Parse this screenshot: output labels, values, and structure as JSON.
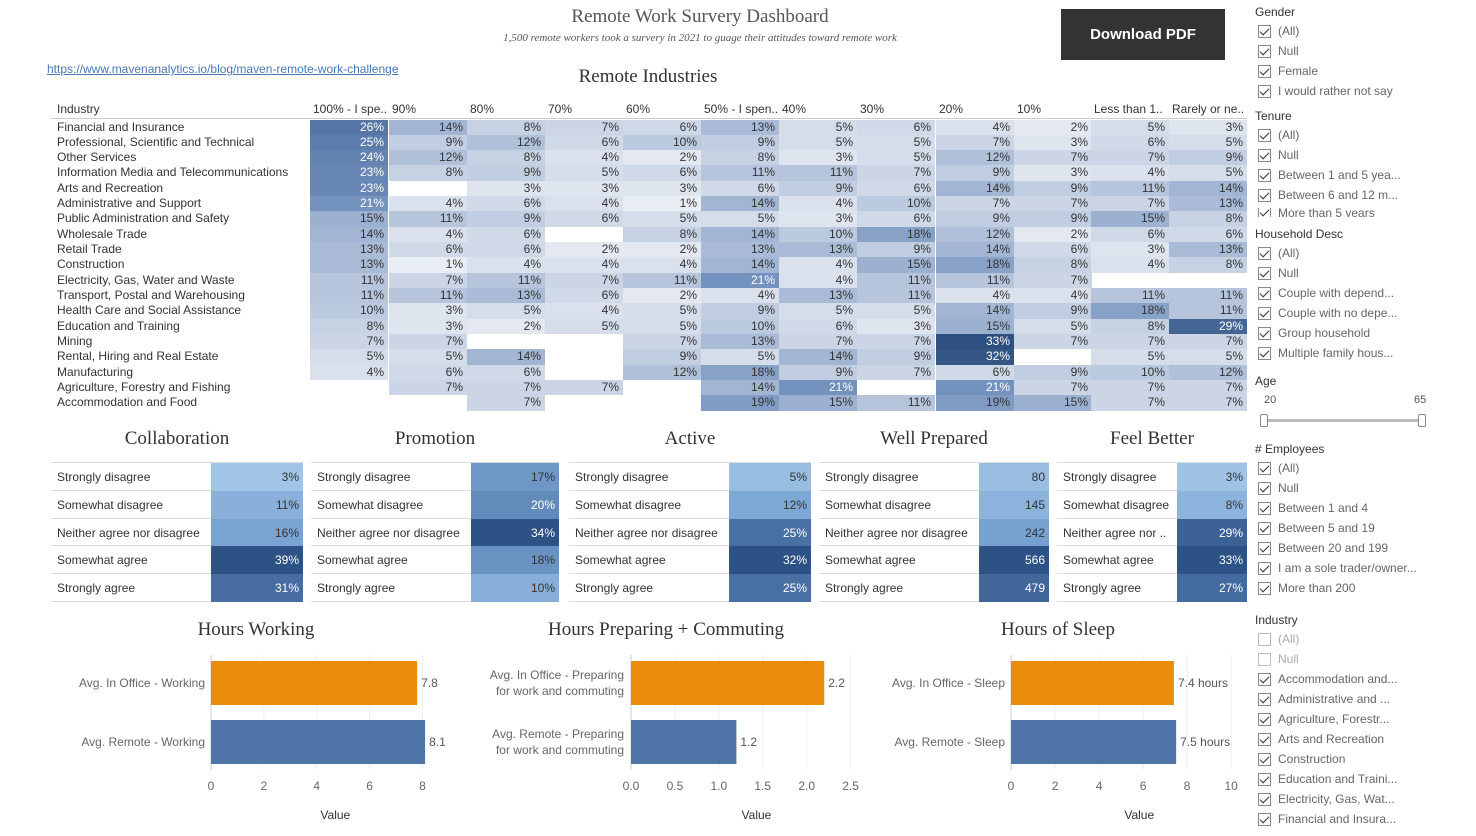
{
  "header": {
    "title": "Remote Work Survery Dashboard",
    "subtitle": "1,500 remote workers took a survery in 2021 to guage their attitudes toward remote work",
    "link": "https://www.mavenanalytics.io/blog/maven-remote-work-challenge",
    "download_label": "Download PDF"
  },
  "chart_data": [
    {
      "type": "heatmap",
      "title": "Remote Industries",
      "row_header": "Industry",
      "columns": [
        "100% - I spe..",
        "90%",
        "80%",
        "70%",
        "60%",
        "50% - I spen..",
        "40%",
        "30%",
        "20%",
        "10%",
        "Less than 1..",
        "Rarely or ne.."
      ],
      "rows": [
        "Financial and Insurance",
        "Professional, Scientific and Technical",
        "Other Services",
        "Information Media and Telecommunications",
        "Arts and Recreation",
        "Administrative and Support",
        "Public Administration and Safety",
        "Wholesale Trade",
        "Retail Trade",
        "Construction",
        "Electricity, Gas, Water and Waste",
        "Transport, Postal and Warehousing",
        "Health Care and Social Assistance",
        "Education and Training",
        "Mining",
        "Rental, Hiring and Real Estate",
        "Manufacturing",
        "Agriculture, Forestry and Fishing",
        "Accommodation and Food"
      ],
      "values": [
        [
          26,
          14,
          8,
          7,
          6,
          13,
          5,
          6,
          4,
          2,
          5,
          3
        ],
        [
          25,
          9,
          12,
          6,
          10,
          9,
          5,
          5,
          7,
          3,
          6,
          5
        ],
        [
          24,
          12,
          8,
          4,
          2,
          8,
          3,
          5,
          12,
          7,
          7,
          9
        ],
        [
          23,
          8,
          9,
          5,
          6,
          11,
          11,
          7,
          9,
          3,
          4,
          5
        ],
        [
          23,
          null,
          3,
          3,
          3,
          6,
          9,
          6,
          14,
          9,
          11,
          14
        ],
        [
          21,
          4,
          6,
          4,
          1,
          14,
          4,
          10,
          7,
          7,
          7,
          13
        ],
        [
          15,
          11,
          9,
          6,
          5,
          5,
          3,
          6,
          9,
          9,
          15,
          8
        ],
        [
          14,
          4,
          6,
          null,
          8,
          14,
          10,
          18,
          12,
          2,
          6,
          6
        ],
        [
          13,
          6,
          6,
          2,
          2,
          13,
          13,
          9,
          14,
          6,
          3,
          13
        ],
        [
          13,
          1,
          4,
          4,
          4,
          14,
          4,
          15,
          18,
          8,
          4,
          8
        ],
        [
          11,
          7,
          11,
          7,
          11,
          21,
          4,
          11,
          11,
          7,
          null,
          null
        ],
        [
          11,
          11,
          13,
          6,
          2,
          4,
          13,
          11,
          4,
          4,
          11,
          11
        ],
        [
          10,
          3,
          5,
          4,
          5,
          9,
          5,
          5,
          14,
          9,
          18,
          11
        ],
        [
          8,
          3,
          2,
          5,
          5,
          10,
          6,
          3,
          15,
          5,
          8,
          29
        ],
        [
          7,
          7,
          null,
          null,
          7,
          13,
          7,
          7,
          33,
          7,
          7,
          7
        ],
        [
          5,
          5,
          14,
          null,
          9,
          5,
          14,
          9,
          32,
          null,
          5,
          5
        ],
        [
          4,
          6,
          6,
          null,
          12,
          18,
          9,
          7,
          6,
          9,
          10,
          12
        ],
        [
          null,
          7,
          7,
          7,
          null,
          14,
          21,
          null,
          21,
          7,
          7,
          7
        ],
        [
          null,
          null,
          7,
          null,
          null,
          19,
          15,
          11,
          19,
          15,
          7,
          7
        ]
      ]
    },
    {
      "type": "table",
      "title": "Collaboration",
      "unit": "%",
      "categories": [
        "Strongly disagree",
        "Somewhat disagree",
        "Neither agree nor disagree",
        "Somewhat agree",
        "Strongly agree"
      ],
      "values": [
        3,
        11,
        16,
        39,
        31
      ]
    },
    {
      "type": "table",
      "title": "Promotion",
      "unit": "%",
      "categories": [
        "Strongly disagree",
        "Somewhat disagree",
        "Neither agree nor disagree",
        "Somewhat agree",
        "Strongly agree"
      ],
      "values": [
        17,
        20,
        34,
        18,
        10
      ]
    },
    {
      "type": "table",
      "title": "Active",
      "unit": "%",
      "categories": [
        "Strongly disagree",
        "Somewhat disagree",
        "Neither agree nor disagree",
        "Somewhat agree",
        "Strongly agree"
      ],
      "values": [
        5,
        12,
        25,
        32,
        25
      ]
    },
    {
      "type": "table",
      "title": "Well Prepared",
      "unit": "",
      "categories": [
        "Strongly disagree",
        "Somewhat disagree",
        "Neither agree nor disagree",
        "Somewhat agree",
        "Strongly agree"
      ],
      "values": [
        80,
        145,
        242,
        566,
        479
      ]
    },
    {
      "type": "table",
      "title": "Feel Better",
      "unit": "%",
      "categories": [
        "Strongly disagree",
        "Somewhat disagree",
        "Neither agree nor ..",
        "Somewhat agree",
        "Strongly agree"
      ],
      "values": [
        3,
        8,
        29,
        33,
        27
      ]
    },
    {
      "type": "bar",
      "orientation": "horizontal",
      "title": "Hours Working",
      "categories": [
        "Avg. In Office  - Working",
        "Avg. Remote - Working"
      ],
      "values": [
        7.8,
        8.1
      ],
      "value_labels": [
        "7.8",
        "8.1"
      ],
      "xlabel": "Value",
      "xlim": [
        0,
        8.4
      ],
      "ticks": [
        0,
        2,
        4,
        6,
        8
      ],
      "colors": [
        "#e98b0c",
        "#4f74a8"
      ]
    },
    {
      "type": "bar",
      "orientation": "horizontal",
      "title": "Hours Preparing + Commuting",
      "categories": [
        "Avg. In Office  - Preparing for work and commuting",
        "Avg. Remote - Preparing for work and commuting"
      ],
      "values": [
        2.2,
        1.2
      ],
      "value_labels": [
        "2.2",
        "1.2"
      ],
      "xlabel": "Value",
      "xlim": [
        0,
        2.55
      ],
      "ticks": [
        0.0,
        0.5,
        1.0,
        1.5,
        2.0,
        2.5
      ],
      "colors": [
        "#e98b0c",
        "#4f74a8"
      ]
    },
    {
      "type": "bar",
      "orientation": "horizontal",
      "title": "Hours of Sleep",
      "categories": [
        "Avg. In Office  - Sleep",
        "Avg. Remote - Sleep"
      ],
      "values": [
        7.4,
        7.5
      ],
      "value_labels": [
        "7.4 hours",
        "7.5 hours"
      ],
      "xlabel": "Value",
      "xlim": [
        0,
        10.4
      ],
      "ticks": [
        0,
        2,
        4,
        6,
        8,
        10
      ],
      "colors": [
        "#e98b0c",
        "#4f74a8"
      ]
    }
  ],
  "filters": [
    {
      "title": "Gender",
      "items": [
        {
          "label": "(All)",
          "checked": true
        },
        {
          "label": "Null",
          "checked": true
        },
        {
          "label": "Female",
          "checked": true
        },
        {
          "label": "I would rather not say",
          "checked": true
        }
      ]
    },
    {
      "title": "Tenure",
      "items": [
        {
          "label": "(All)",
          "checked": true
        },
        {
          "label": "Null",
          "checked": true
        },
        {
          "label": "Between 1 and 5 yea...",
          "checked": true
        },
        {
          "label": "Between 6 and 12 m...",
          "checked": true
        },
        {
          "label": "More than 5 years",
          "checked": true
        }
      ]
    },
    {
      "title": "Household Desc",
      "items": [
        {
          "label": "(All)",
          "checked": true
        },
        {
          "label": "Null",
          "checked": true
        },
        {
          "label": "Couple with depend...",
          "checked": true
        },
        {
          "label": "Couple with no depe...",
          "checked": true
        },
        {
          "label": "Group household",
          "checked": true
        },
        {
          "label": "Multiple family hous...",
          "checked": true
        }
      ]
    },
    {
      "title": "Age",
      "range": {
        "min": "20",
        "max": "65"
      }
    },
    {
      "title": "# Employees",
      "items": [
        {
          "label": "(All)",
          "checked": true
        },
        {
          "label": "Null",
          "checked": true
        },
        {
          "label": "Between 1 and 4",
          "checked": true
        },
        {
          "label": "Between 5 and 19",
          "checked": true
        },
        {
          "label": "Between 20 and 199",
          "checked": true
        },
        {
          "label": "I am a sole trader/owner...",
          "checked": true
        },
        {
          "label": "More than 200",
          "checked": true
        }
      ]
    },
    {
      "title": "Industry",
      "items": [
        {
          "label": "(All)",
          "checked": false
        },
        {
          "label": "Null",
          "checked": false
        },
        {
          "label": "Accommodation and...",
          "checked": true
        },
        {
          "label": "Administrative and ...",
          "checked": true
        },
        {
          "label": "Agriculture, Forestr...",
          "checked": true
        },
        {
          "label": "Arts and Recreation",
          "checked": true
        },
        {
          "label": "Construction",
          "checked": true
        },
        {
          "label": "Education and Traini...",
          "checked": true
        },
        {
          "label": "Electricity, Gas, Wat...",
          "checked": true
        },
        {
          "label": "Financial and Insura...",
          "checked": true
        }
      ]
    }
  ]
}
